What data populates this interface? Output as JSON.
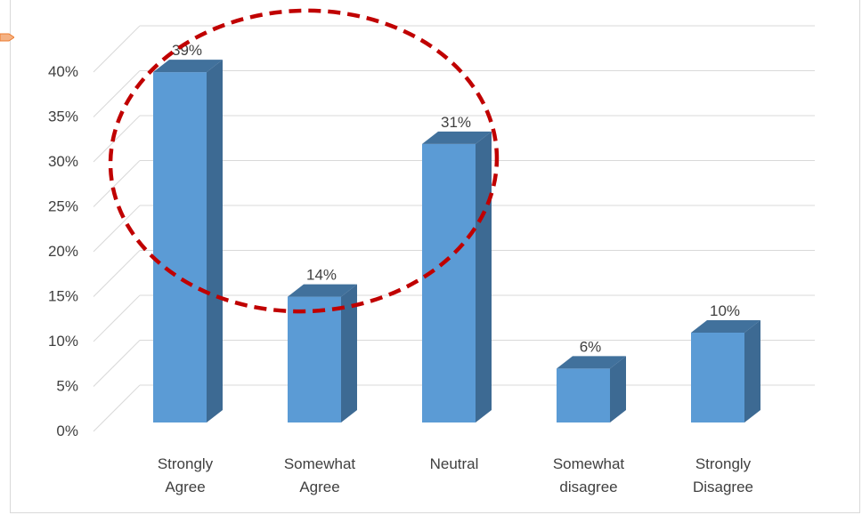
{
  "chart_data": {
    "type": "bar",
    "style": "3d-column",
    "categories": [
      [
        "Strongly",
        "Agree"
      ],
      [
        "Somewhat",
        "Agree"
      ],
      [
        "Neutral"
      ],
      [
        "Somewhat",
        "disagree"
      ],
      [
        "Strongly",
        "Disagree"
      ]
    ],
    "values": [
      39,
      14,
      31,
      6,
      10
    ],
    "data_labels": [
      "39%",
      "14%",
      "31%",
      "6%",
      "10%"
    ],
    "y_ticks": [
      "0%",
      "5%",
      "10%",
      "15%",
      "20%",
      "25%",
      "30%",
      "35%",
      "40%"
    ],
    "ylim": [
      0,
      40
    ],
    "grid": true,
    "title": "",
    "xlabel": "",
    "ylabel": "",
    "annotation": {
      "type": "dashed-ellipse",
      "highlights": [
        "Strongly Agree",
        "Neutral"
      ],
      "color": "#c00000"
    },
    "colors": {
      "bar_front": "#5b9bd5",
      "bar_side": "#3d6a93",
      "bar_top": "#41719c",
      "grid": "#d9d9d9",
      "text": "#404040"
    }
  }
}
